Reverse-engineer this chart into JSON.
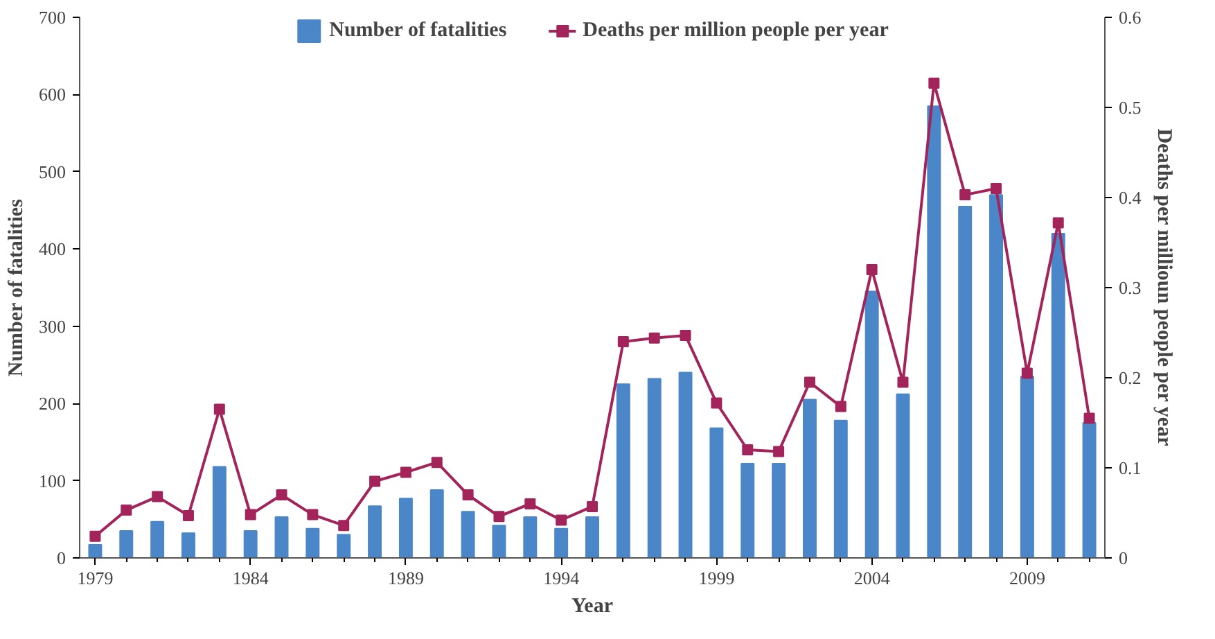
{
  "chart_data": {
    "type": "bar",
    "xlabel": "Year",
    "ylabel": "Number of fatalities",
    "y2label": "Deaths per millioun people per year",
    "x": [
      1979,
      1980,
      1981,
      1982,
      1983,
      1984,
      1985,
      1986,
      1987,
      1988,
      1989,
      1990,
      1991,
      1992,
      1993,
      1994,
      1995,
      1996,
      1997,
      1998,
      1999,
      2000,
      2001,
      2002,
      2003,
      2004,
      2005,
      2006,
      2007,
      2008,
      2009,
      2010,
      2011
    ],
    "series": [
      {
        "name": "Number of fatalities",
        "color": "#4a86c8",
        "values": [
          17,
          35,
          47,
          32,
          118,
          35,
          53,
          38,
          30,
          67,
          77,
          88,
          60,
          42,
          53,
          38,
          53,
          225,
          232,
          240,
          168,
          122,
          122,
          205,
          178,
          345,
          212,
          585,
          455,
          470,
          235,
          420,
          175
        ]
      },
      {
        "name": "Deaths per million people per year",
        "type": "line",
        "axis": "y2",
        "color": "#a3245a",
        "marker": "square",
        "values": [
          0.024,
          0.053,
          0.068,
          0.047,
          0.165,
          0.048,
          0.07,
          0.048,
          0.036,
          0.085,
          0.095,
          0.106,
          0.07,
          0.046,
          0.06,
          0.042,
          0.057,
          0.24,
          0.244,
          0.247,
          0.172,
          0.12,
          0.118,
          0.195,
          0.168,
          0.32,
          0.195,
          0.527,
          0.403,
          0.41,
          0.205,
          0.372,
          0.155
        ]
      }
    ],
    "xlim": [
      1978.5,
      2011.5
    ],
    "xticks": [
      1979,
      1984,
      1989,
      1994,
      1999,
      2004,
      2009
    ],
    "ylim": [
      0,
      700
    ],
    "yticks": [
      0,
      100,
      200,
      300,
      400,
      500,
      600,
      700
    ],
    "y2lim": [
      0,
      0.6
    ],
    "y2ticks": [
      0,
      0.1,
      0.2,
      0.3,
      0.4,
      0.5,
      0.6
    ],
    "grid": false,
    "legend": "top"
  }
}
